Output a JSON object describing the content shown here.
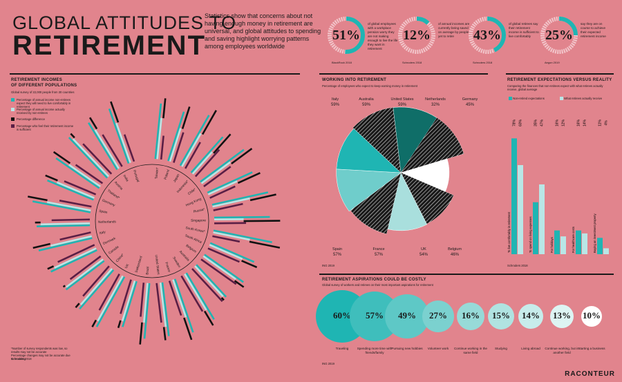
{
  "header": {
    "title_line1": "GLOBAL ATTITUDES TO",
    "title_line2": "RETIREMENT",
    "intro": "Statistics show that concerns about not having enough money in retirement are universal, and global attitudes to spending and saving highlight worrying patterns among employees worldwide"
  },
  "stats": [
    {
      "pct": "51%",
      "value": 51,
      "desc": "of global employees with a workplace pension worry they are not making enough to live the life they want in retirement",
      "source": "BlackRock 2018"
    },
    {
      "pct": "12%",
      "value": 12,
      "desc": "of annual incomes are currently being saved on average by people yet to retire",
      "source": "Schroders 2018"
    },
    {
      "pct": "43%",
      "value": 43,
      "desc": "of global retirees say their retirement income is sufficient to live comfortably",
      "source": "Schroders 2018"
    },
    {
      "pct": "25%",
      "value": 25,
      "desc": "say they are on course to achieve their expected retirement income",
      "source": "Aegon 2019"
    }
  ],
  "incomes": {
    "heading_line1": "RETIREMENT INCOMES",
    "heading_line2": "OF DIFFERENT POPULATIONS",
    "subtitle": "Global survey of 22,000 people from 30 countries",
    "legend": [
      {
        "label": "Percentage of annual income non-retirees expect they will need to live comfortably in retirement",
        "color": "#1fb5b3"
      },
      {
        "label": "Percentage of annual income actually received by non-retirees",
        "color": "#b9e6e6"
      },
      {
        "label": "Percentage difference",
        "color": "#111111"
      },
      {
        "label": "Percentage who feel their retirement income is sufficient",
        "color": "#5a1e45"
      }
    ],
    "footnote": "*Number of survey respondents was low, so results may not be accurate\nPercentage changes may not be accurate due to rounding",
    "source": "Schroders 2018",
    "countries": [
      "Taiwan*",
      "Poland",
      "Japan",
      "Indonesia*",
      "Chile*",
      "Hong Kong",
      "Russia*",
      "Singapore",
      "South Korea*",
      "South Africa",
      "Belgium",
      "Australia",
      "Sweden",
      "France",
      "United States",
      "Brazil",
      "Switzerland",
      "UK",
      "China*",
      "Canada",
      "Denmark",
      "Italy",
      "Netherlands",
      "Spain",
      "Germany",
      "Thailand*",
      "Austria",
      "India",
      "Portugal"
    ],
    "values": [
      [
        70,
        52,
        18,
        30
      ],
      [
        65,
        44,
        21,
        40
      ],
      [
        73,
        48,
        25,
        38
      ],
      [
        60,
        37,
        23,
        45
      ],
      [
        68,
        45,
        23,
        42
      ],
      [
        62,
        40,
        22,
        35
      ],
      [
        72,
        48,
        24,
        38
      ],
      [
        70,
        37,
        33,
        40
      ],
      [
        75,
        47,
        28,
        35
      ],
      [
        60,
        45,
        15,
        43
      ],
      [
        60,
        50,
        10,
        54
      ],
      [
        55,
        52,
        3,
        56
      ],
      [
        68,
        53,
        15,
        52
      ],
      [
        71,
        50,
        21,
        46
      ],
      [
        68,
        56,
        12,
        50
      ],
      [
        70,
        50,
        20,
        43
      ],
      [
        60,
        53,
        7,
        45
      ],
      [
        72,
        65,
        7,
        52
      ],
      [
        65,
        60,
        5,
        50
      ],
      [
        60,
        58,
        2,
        48
      ],
      [
        64,
        58,
        6,
        51
      ],
      [
        69,
        53,
        16,
        40
      ],
      [
        67,
        62,
        5,
        48
      ],
      [
        74,
        56,
        18,
        41
      ],
      [
        63,
        51,
        12,
        43
      ],
      [
        66,
        48,
        18,
        41
      ],
      [
        70,
        65,
        5,
        52
      ],
      [
        69,
        57,
        12,
        47
      ],
      [
        73,
        53,
        20,
        36
      ]
    ]
  },
  "working": {
    "heading": "WORKING INTO RETIREMENT",
    "subtitle": "Percentage of employees who expect to keep earning money in retirement",
    "source": "ING 2019",
    "countries": [
      {
        "name": "Italy",
        "pct": "59%",
        "value": 59
      },
      {
        "name": "Australia",
        "pct": "59%",
        "value": 59
      },
      {
        "name": "United States",
        "pct": "59%",
        "value": 59
      },
      {
        "name": "Netherlands",
        "pct": "32%",
        "value": 32
      },
      {
        "name": "Germany",
        "pct": "45%",
        "value": 45
      },
      {
        "name": "Belgium",
        "pct": "46%",
        "value": 46
      },
      {
        "name": "UK",
        "pct": "54%",
        "value": 54
      },
      {
        "name": "France",
        "pct": "57%",
        "value": 57
      },
      {
        "name": "Spain",
        "pct": "57%",
        "value": 57
      }
    ]
  },
  "expectations": {
    "heading": "RETIREMENT EXPECTATIONS VERSUS REALITY",
    "subtitle": "Comparing the finances that non-retirees expect with what retirees actually receive, global average",
    "legend_expect": "Non-retired expectations",
    "legend_receive": "What retirees actually receive",
    "source": "Schroders 2018",
    "categories": [
      {
        "label": "To live comfortably in retirement",
        "expect": "78%",
        "receive": "60%",
        "ev": 78,
        "rv": 60
      },
      {
        "label": "To spend on living expenses",
        "expect": "35%",
        "receive": "47%",
        "ev": 35,
        "rv": 47
      },
      {
        "label": "For holidays",
        "expect": "16%",
        "receive": "12%",
        "ev": 16,
        "rv": 12
      },
      {
        "label": "For healthcare costs",
        "expect": "16%",
        "receive": "14%",
        "ev": 16,
        "rv": 14
      },
      {
        "label": "Buying an investment property",
        "expect": "11%",
        "receive": "4%",
        "ev": 11,
        "rv": 4
      }
    ]
  },
  "aspirations": {
    "heading": "RETIREMENT ASPIRATIONS COULD BE COSTLY",
    "subtitle": "Global survey of workers and retirees on their most important aspirations for retirement",
    "source": "ING 2019",
    "items": [
      {
        "pct": "60%",
        "label": "Traveling",
        "color": "#1fb5b3"
      },
      {
        "pct": "57%",
        "label": "Spending more time with friends/family",
        "color": "#3fbebc"
      },
      {
        "pct": "49%",
        "label": "Pursuing new hobbies",
        "color": "#5ec8c6"
      },
      {
        "pct": "27%",
        "label": "Volunteer work",
        "color": "#7bd1cf"
      },
      {
        "pct": "16%",
        "label": "Continue working in the same field",
        "color": "#97dad8"
      },
      {
        "pct": "15%",
        "label": "Studying",
        "color": "#b0e3e1"
      },
      {
        "pct": "14%",
        "label": "Living abroad",
        "color": "#c7eceb"
      },
      {
        "pct": "13%",
        "label": "Continue working, but in another field",
        "color": "#ddf4f3"
      },
      {
        "pct": "10%",
        "label": "Starting a business",
        "color": "#ffffff"
      }
    ]
  },
  "footer": {
    "logo": "RACONTEUR"
  }
}
